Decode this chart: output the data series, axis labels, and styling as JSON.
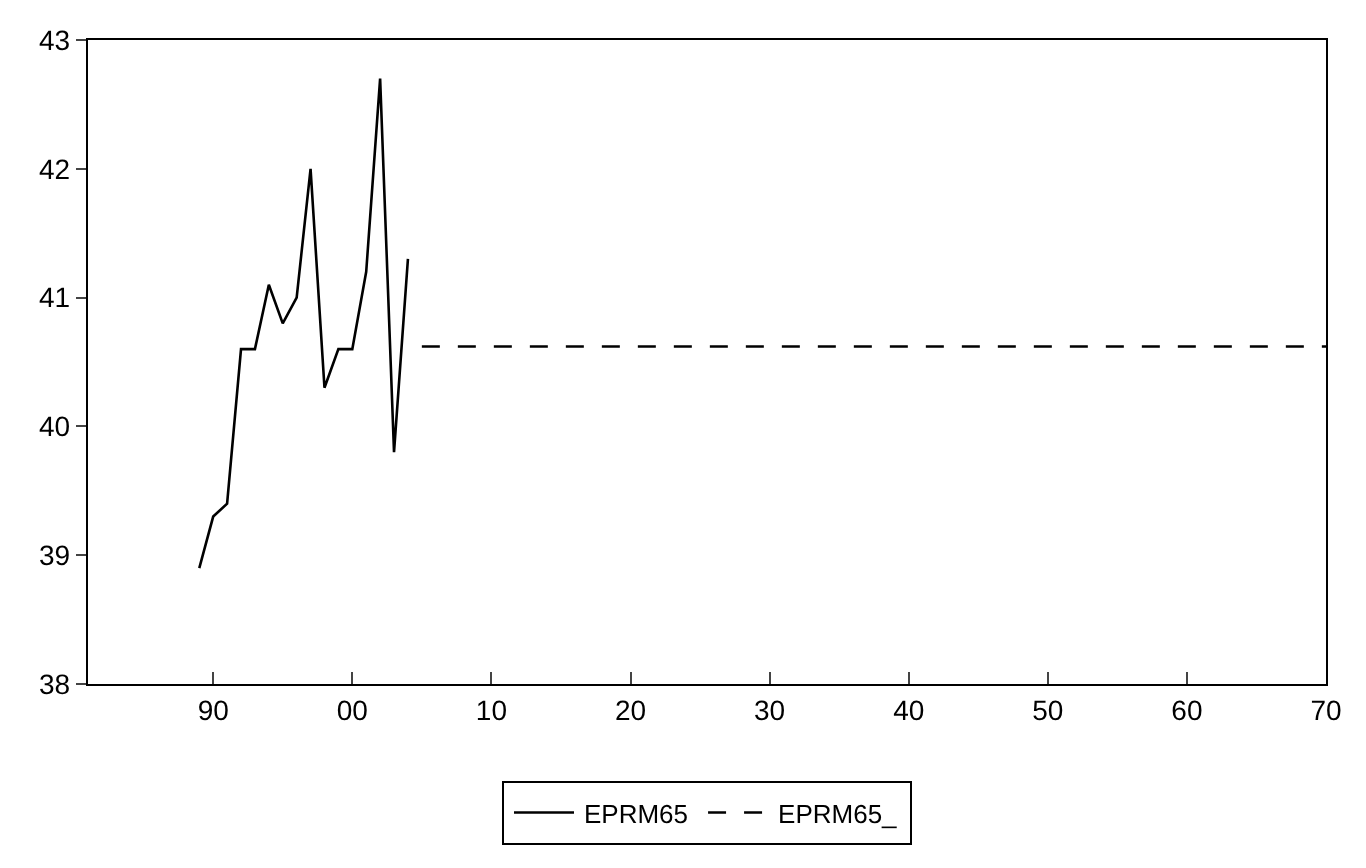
{
  "chart_data": {
    "type": "line",
    "xlim": [
      1981,
      2070
    ],
    "xticks": [
      {
        "value": 1990,
        "label": "90"
      },
      {
        "value": 2000,
        "label": "00"
      },
      {
        "value": 2010,
        "label": "10"
      },
      {
        "value": 2020,
        "label": "20"
      },
      {
        "value": 2030,
        "label": "30"
      },
      {
        "value": 2040,
        "label": "40"
      },
      {
        "value": 2050,
        "label": "50"
      },
      {
        "value": 2060,
        "label": "60"
      },
      {
        "value": 2070,
        "label": "70"
      }
    ],
    "ylim": [
      38,
      43
    ],
    "yticks": [
      38,
      39,
      40,
      41,
      42,
      43
    ],
    "legend": "bottom",
    "marker": "none",
    "series": [
      {
        "name": "EPRM65",
        "color": "#000000",
        "line_style": "solid",
        "x": [
          1989,
          1990,
          1991,
          1992,
          1993,
          1994,
          1995,
          1996,
          1997,
          1998,
          1999,
          2000,
          2001,
          2002,
          2003,
          2004
        ],
        "values": [
          38.9,
          39.3,
          39.4,
          40.6,
          40.6,
          41.1,
          40.8,
          41.0,
          42.0,
          40.3,
          40.6,
          40.6,
          41.2,
          42.7,
          39.8,
          41.3
        ]
      },
      {
        "name": "EPRM65_",
        "color": "#000000",
        "line_style": "dashed",
        "x": [
          2005,
          2070
        ],
        "values": [
          40.62,
          40.62
        ]
      }
    ]
  }
}
